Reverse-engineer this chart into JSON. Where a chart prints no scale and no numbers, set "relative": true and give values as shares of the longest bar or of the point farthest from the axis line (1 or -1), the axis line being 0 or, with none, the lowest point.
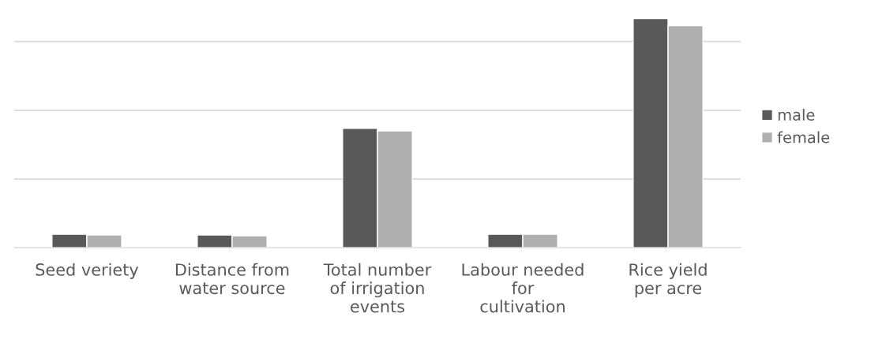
{
  "chart_data": {
    "type": "bar",
    "relative": true,
    "categories": [
      "Seed veriety",
      "Distance from water source",
      "Total number of irrigation events",
      "Labour needed for cultivation",
      "Rice yield per acre"
    ],
    "series": [
      {
        "name": "male",
        "color": "#595959",
        "values": [
          0.059,
          0.056,
          0.521,
          0.059,
          1
        ]
      },
      {
        "name": "female",
        "color": "#afafaf",
        "values": [
          0.056,
          0.052,
          0.51,
          0.059,
          0.969
        ]
      }
    ],
    "grid": "y",
    "legend": "right"
  }
}
